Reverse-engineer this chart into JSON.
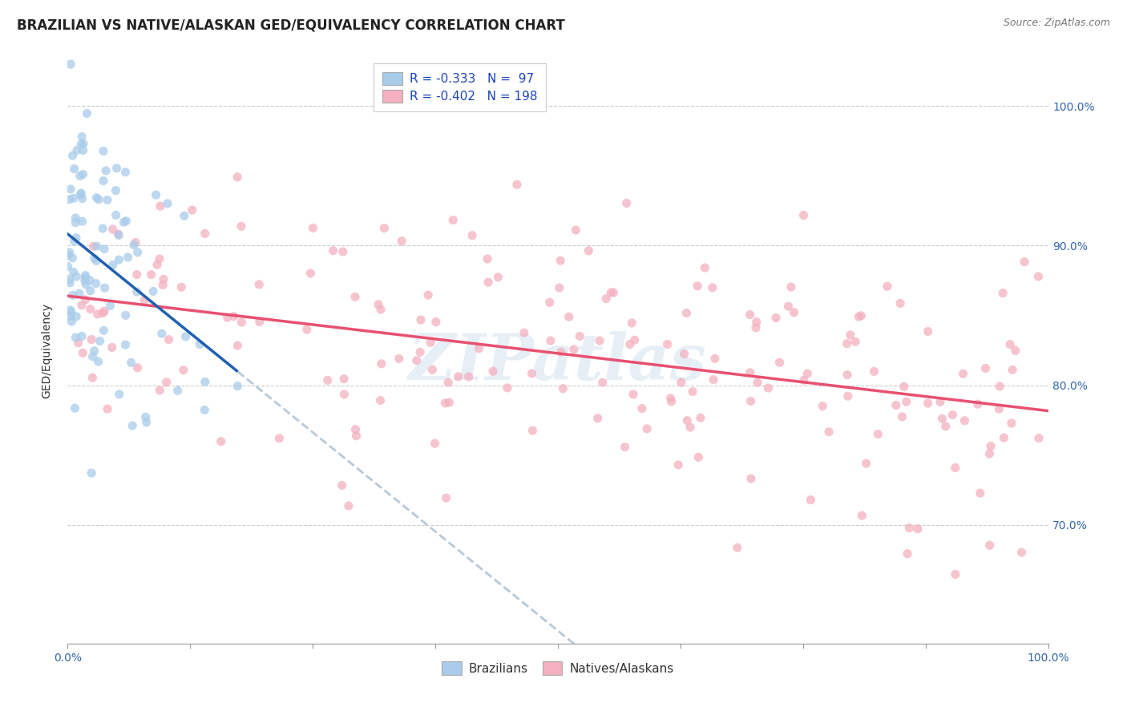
{
  "title": "BRAZILIAN VS NATIVE/ALASKAN GED/EQUIVALENCY CORRELATION CHART",
  "source": "Source: ZipAtlas.com",
  "ylabel": "GED/Equivalency",
  "ytick_labels": [
    "70.0%",
    "80.0%",
    "90.0%",
    "100.0%"
  ],
  "ytick_positions": [
    0.7,
    0.8,
    0.9,
    1.0
  ],
  "xlim": [
    0.0,
    1.0
  ],
  "ylim": [
    0.615,
    1.035
  ],
  "legend_R1": "R = -0.333",
  "legend_N1": "N =  97",
  "legend_R2": "R = -0.402",
  "legend_N2": "N = 198",
  "color_brazilian": "#a8ccea",
  "color_native": "#f4b0c0",
  "color_line_brazilian": "#2060b0",
  "color_line_native": "#e85070",
  "color_line_ext": "#b8c8d8",
  "watermark": "ZIPatlas",
  "seed": 42,
  "n_brazilian": 97,
  "n_native": 198,
  "title_fontsize": 12,
  "source_fontsize": 9,
  "label_fontsize": 10,
  "tick_fontsize": 10,
  "legend_fontsize": 11
}
